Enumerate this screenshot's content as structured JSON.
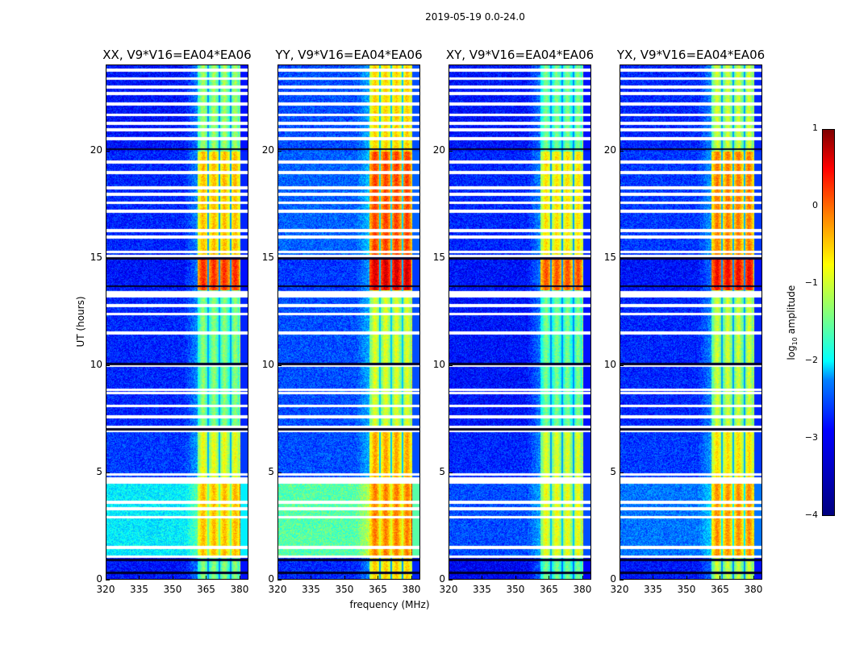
{
  "suptitle": "2019-05-19 0.0-24.0",
  "chart_data": {
    "type": "heatmap",
    "xlabel": "frequency (MHz)",
    "ylabel": "UT (hours)",
    "xlim": [
      320,
      384
    ],
    "ylim": [
      0,
      24
    ],
    "xticks": [
      320,
      335,
      350,
      365,
      380
    ],
    "yticks": [
      0,
      5,
      10,
      15,
      20
    ],
    "colorbar": {
      "label": "log10 amplitude",
      "label_main": "log",
      "label_sub": "10",
      "label_rest": " amplitude",
      "range": [
        -4,
        1
      ],
      "ticks": [
        1,
        0,
        -1,
        -2,
        -3,
        -4
      ],
      "tick_labels": [
        "1",
        "0",
        "−1",
        "−2",
        "−3",
        "−4"
      ],
      "colormap": "jet"
    },
    "band_mhz": [
      361,
      380
    ],
    "band_gaps_mhz": [
      366,
      371,
      376
    ],
    "flagged_hours": [
      1.05,
      1.5,
      2.9,
      3.3,
      3.6,
      4.55,
      4.7,
      4.9,
      6.95,
      7.1,
      7.6,
      8.1,
      8.7,
      8.85,
      10.0,
      11.5,
      12.4,
      12.8,
      13.25,
      13.4,
      15.1,
      15.3,
      16.0,
      16.3,
      17.2,
      17.6,
      18.0,
      18.3,
      19.0,
      19.5,
      20.6,
      21.0,
      21.3,
      21.7,
      22.2,
      22.7,
      23.0,
      23.4,
      23.8
    ],
    "dark_hours": [
      0.3,
      0.9,
      7.0,
      10.05,
      13.7,
      15.0,
      20.1
    ],
    "panels": [
      {
        "title": "XX, V9*V16=EA04*EA06",
        "segments": [
          {
            "t": [
              0,
              1
            ],
            "off": -3.3,
            "band": -1.7
          },
          {
            "t": [
              1,
              4.5
            ],
            "off": -2.2,
            "band": -0.8
          },
          {
            "t": [
              4.5,
              7
            ],
            "off": -3.1,
            "band": -1.2
          },
          {
            "t": [
              7,
              13.5
            ],
            "off": -3.2,
            "band": -1.7
          },
          {
            "t": [
              13.5,
              15
            ],
            "off": -3.3,
            "band": -0.1
          },
          {
            "t": [
              15,
              20
            ],
            "off": -3.2,
            "band": -0.8
          },
          {
            "t": [
              20,
              24
            ],
            "off": -3.3,
            "band": -1.6
          }
        ]
      },
      {
        "title": "YY, V9*V16=EA04*EA06",
        "segments": [
          {
            "t": [
              0,
              1
            ],
            "off": -3.2,
            "band": -0.9
          },
          {
            "t": [
              1,
              4.5
            ],
            "off": -1.7,
            "band": -0.5
          },
          {
            "t": [
              4.5,
              7
            ],
            "off": -3.0,
            "band": -0.7
          },
          {
            "t": [
              7,
              13.5
            ],
            "off": -3.0,
            "band": -1.3
          },
          {
            "t": [
              13.5,
              15
            ],
            "off": -3.1,
            "band": 0.3
          },
          {
            "t": [
              15,
              20
            ],
            "off": -2.9,
            "band": -0.2
          },
          {
            "t": [
              20,
              24
            ],
            "off": -3.0,
            "band": -0.9
          }
        ]
      },
      {
        "title": "XY, V9*V16=EA04*EA06",
        "segments": [
          {
            "t": [
              0,
              1
            ],
            "off": -3.4,
            "band": -1.8
          },
          {
            "t": [
              1,
              4.5
            ],
            "off": -3.0,
            "band": -1.2
          },
          {
            "t": [
              4.5,
              7
            ],
            "off": -3.2,
            "band": -1.3
          },
          {
            "t": [
              7,
              13.5
            ],
            "off": -3.3,
            "band": -1.8
          },
          {
            "t": [
              13.5,
              15
            ],
            "off": -3.3,
            "band": -0.3
          },
          {
            "t": [
              15,
              20
            ],
            "off": -3.2,
            "band": -1.0
          },
          {
            "t": [
              20,
              24
            ],
            "off": -3.3,
            "band": -1.8
          }
        ]
      },
      {
        "title": "YX, V9*V16=EA04*EA06",
        "segments": [
          {
            "t": [
              0,
              1
            ],
            "off": -3.3,
            "band": -1.4
          },
          {
            "t": [
              1,
              4.5
            ],
            "off": -2.8,
            "band": -0.6
          },
          {
            "t": [
              4.5,
              7
            ],
            "off": -3.1,
            "band": -1.0
          },
          {
            "t": [
              7,
              13.5
            ],
            "off": -3.2,
            "band": -1.4
          },
          {
            "t": [
              13.5,
              15
            ],
            "off": -3.3,
            "band": 0.1
          },
          {
            "t": [
              15,
              20
            ],
            "off": -3.1,
            "band": -0.5
          },
          {
            "t": [
              20,
              24
            ],
            "off": -3.2,
            "band": -1.4
          }
        ]
      }
    ]
  }
}
